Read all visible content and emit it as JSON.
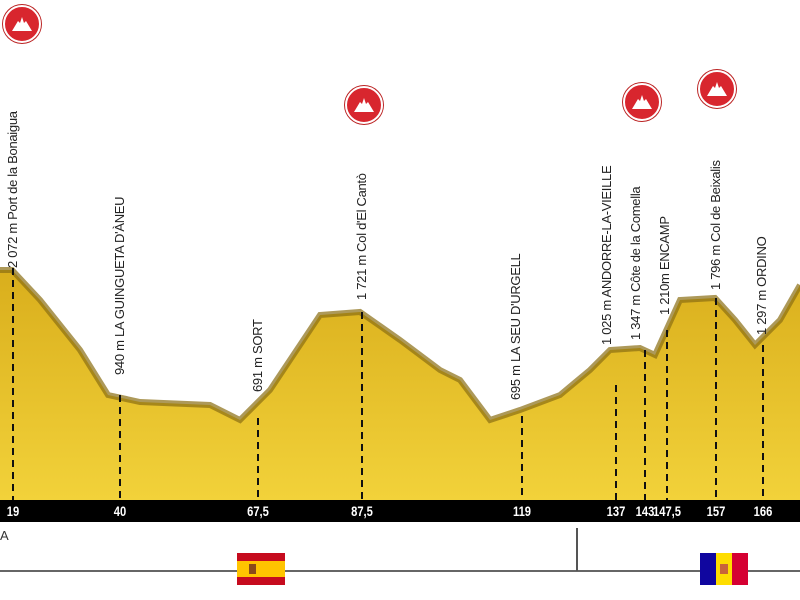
{
  "points": [
    {
      "km": "19",
      "label": "2 072 m  Port de la Bonaigua",
      "climb": true
    },
    {
      "km": "40",
      "label": "940 m  LA GUINGUETA D'ÀNEU",
      "climb": false
    },
    {
      "km": "67,5",
      "label": "691 m  SORT",
      "climb": false
    },
    {
      "km": "87,5",
      "label": "1 721 m Col d'El Cantò",
      "climb": true
    },
    {
      "km": "119",
      "label": "695 m  LA SEU D'URGELL",
      "climb": false
    },
    {
      "km": "137",
      "label": "1 025 m ANDORRE-LA-VIEILLE",
      "climb": false
    },
    {
      "km": "143",
      "label": "1 347 m  Côte de la Comella",
      "climb": true
    },
    {
      "km": "147,5",
      "label": "1 210m  ENCAMP",
      "climb": false
    },
    {
      "km": "157",
      "label": "1 796 m  Col de Beixalis",
      "climb": true
    },
    {
      "km": "166",
      "label": "1 297 m  ORDINO",
      "climb": false
    }
  ],
  "region_label": "A",
  "countries": [
    {
      "name": "spain-flag"
    },
    {
      "name": "andorra-flag"
    }
  ],
  "colors": {
    "terrain": "#e8c22a",
    "terrain_dark": "#8a6d12",
    "axis": "#000000",
    "climb": "#d8262e"
  }
}
